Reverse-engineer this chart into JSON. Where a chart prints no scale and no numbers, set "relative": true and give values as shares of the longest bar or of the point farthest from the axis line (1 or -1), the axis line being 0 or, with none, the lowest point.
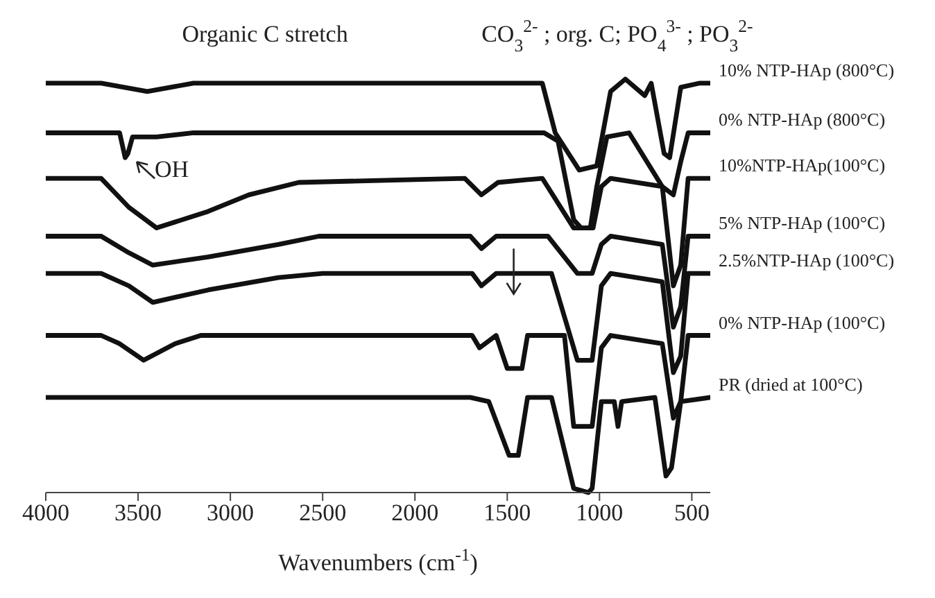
{
  "chart_data": {
    "type": "line",
    "relative": true,
    "xlabel": "Wavenumbers (cm$^{-1}$)",
    "xlim": [
      4000,
      400
    ],
    "xticks": [
      4000,
      3500,
      3000,
      2500,
      2000,
      1500,
      1000,
      500
    ],
    "tick_labels": "x",
    "legend": false,
    "grid": false,
    "annotations": [
      "Organic C stretch",
      "CO$_{3}$$^{2-}$ ; org. C; PO$_{4}$$^{3-}$ ; PO$_{3}$$^{2-}$",
      {
        "text": "OH",
        "x": 3560,
        "y": 0.81
      }
    ],
    "series": [
      {
        "name": "10% NTP-HAp (800°C)",
        "color": "#111111",
        "x": [
          4000,
          3700,
          3450,
          3200,
          1310,
          1240,
          1110,
          1015,
          940,
          860,
          755,
          720,
          650,
          620,
          560,
          460,
          400
        ],
        "values": [
          0.99,
          0.99,
          0.97,
          0.99,
          0.99,
          0.87,
          0.78,
          0.79,
          0.97,
          1.0,
          0.96,
          0.99,
          0.82,
          0.81,
          0.98,
          0.99,
          0.99
        ]
      },
      {
        "name": "0% NTP-HAp (800°C)",
        "color": "#111111",
        "x": [
          4000,
          3600,
          3570,
          3555,
          3530,
          3400,
          3200,
          1300,
          1225,
          1140,
          1100,
          1050,
          1015,
          960,
          840,
          660,
          600,
          560,
          520,
          400
        ],
        "values": [
          0.87,
          0.87,
          0.81,
          0.82,
          0.86,
          0.86,
          0.87,
          0.87,
          0.85,
          0.66,
          0.64,
          0.64,
          0.74,
          0.86,
          0.87,
          0.74,
          0.72,
          0.8,
          0.87,
          0.87
        ]
      },
      {
        "name": "10%NTP-HAp(100°C)",
        "color": "#111111",
        "x": [
          4000,
          3700,
          3550,
          3400,
          3120,
          2900,
          2630,
          1730,
          1640,
          1550,
          1310,
          1140,
          1035,
          990,
          940,
          660,
          600,
          560,
          520,
          400
        ],
        "values": [
          0.76,
          0.76,
          0.69,
          0.64,
          0.68,
          0.72,
          0.75,
          0.76,
          0.72,
          0.75,
          0.76,
          0.64,
          0.64,
          0.74,
          0.76,
          0.74,
          0.5,
          0.55,
          0.76,
          0.76
        ]
      },
      {
        "name": "5% NTP-HAp (100°C)",
        "color": "#111111",
        "x": [
          4000,
          3700,
          3550,
          3420,
          3120,
          2740,
          2520,
          1700,
          1640,
          1560,
          1280,
          1120,
          1040,
          990,
          940,
          660,
          600,
          560,
          520,
          400
        ],
        "values": [
          0.62,
          0.62,
          0.58,
          0.55,
          0.57,
          0.6,
          0.62,
          0.62,
          0.59,
          0.62,
          0.62,
          0.53,
          0.53,
          0.6,
          0.62,
          0.6,
          0.4,
          0.45,
          0.62,
          0.62
        ]
      },
      {
        "name": "2.5%NTP-HAp (100°C)",
        "color": "#111111",
        "x": [
          4000,
          3700,
          3550,
          3420,
          3120,
          2740,
          2500,
          1690,
          1640,
          1560,
          1260,
          1120,
          1040,
          990,
          940,
          660,
          600,
          560,
          520,
          400
        ],
        "values": [
          0.53,
          0.53,
          0.5,
          0.46,
          0.49,
          0.52,
          0.53,
          0.53,
          0.5,
          0.53,
          0.53,
          0.32,
          0.32,
          0.5,
          0.53,
          0.51,
          0.29,
          0.33,
          0.53,
          0.53
        ]
      },
      {
        "name": "0% NTP-HAp (100°C)",
        "color": "#111111",
        "x": [
          4000,
          3700,
          3600,
          3470,
          3300,
          3160,
          1690,
          1650,
          1560,
          1500,
          1420,
          1390,
          1190,
          1140,
          1040,
          990,
          940,
          660,
          600,
          560,
          520,
          400
        ],
        "values": [
          0.38,
          0.38,
          0.36,
          0.32,
          0.36,
          0.38,
          0.38,
          0.35,
          0.38,
          0.3,
          0.3,
          0.38,
          0.38,
          0.16,
          0.16,
          0.35,
          0.38,
          0.36,
          0.18,
          0.22,
          0.38,
          0.38
        ]
      },
      {
        "name": "PR (dried at 100°C)",
        "color": "#111111",
        "x": [
          4000,
          1700,
          1600,
          1490,
          1440,
          1390,
          1260,
          1140,
          1060,
          1040,
          990,
          920,
          900,
          880,
          700,
          640,
          610,
          560,
          400
        ],
        "values": [
          0.23,
          0.23,
          0.22,
          0.09,
          0.09,
          0.23,
          0.23,
          0.01,
          0,
          0.01,
          0.22,
          0.22,
          0.16,
          0.22,
          0.23,
          0.04,
          0.06,
          0.22,
          0.23
        ]
      }
    ]
  }
}
